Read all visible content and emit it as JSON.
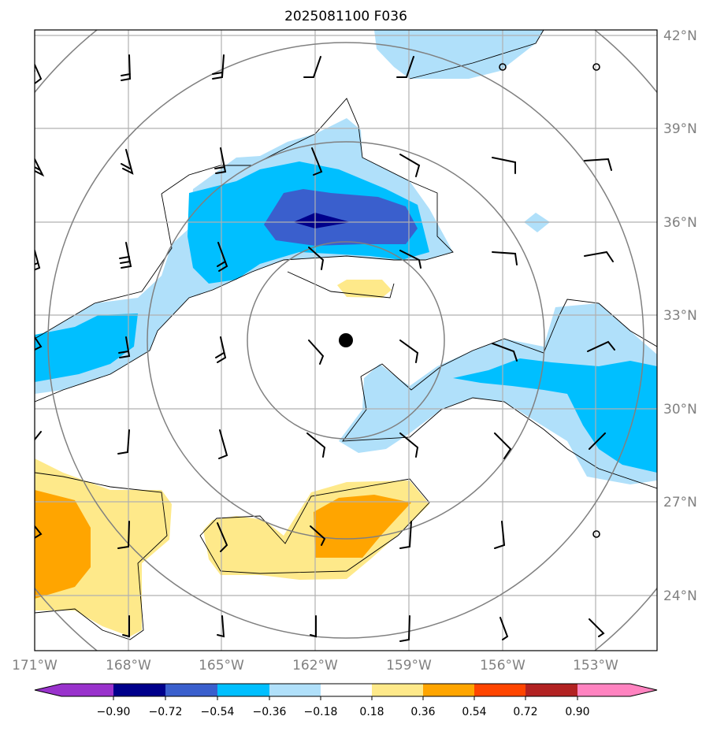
{
  "map": {
    "title": "2025081100 F036",
    "lon_labels": [
      "171°W",
      "168°W",
      "165°W",
      "162°W",
      "159°W",
      "156°W",
      "153°W"
    ],
    "lat_labels": [
      "42°N",
      "39°N",
      "36°N",
      "33°N",
      "30°N",
      "27°N",
      "24°N"
    ],
    "storm_center": {
      "lat": 32.2,
      "lon": -160.1
    },
    "colors": {
      "n090": "#9932cc",
      "n072": "#00008b",
      "n054": "#3a5fcd",
      "n036": "#00bfff",
      "n018": "#b0e0fa",
      "p018": "#fee98a",
      "p036": "#ffa500",
      "p054": "#ff4500",
      "p072": "#b22222",
      "p090": "#ff83c0"
    }
  },
  "colorbar": {
    "ticks": [
      "−0.90",
      "−0.72",
      "−0.54",
      "−0.36",
      "−0.18",
      "0.18",
      "0.36",
      "0.54",
      "0.72",
      "0.90"
    ]
  }
}
